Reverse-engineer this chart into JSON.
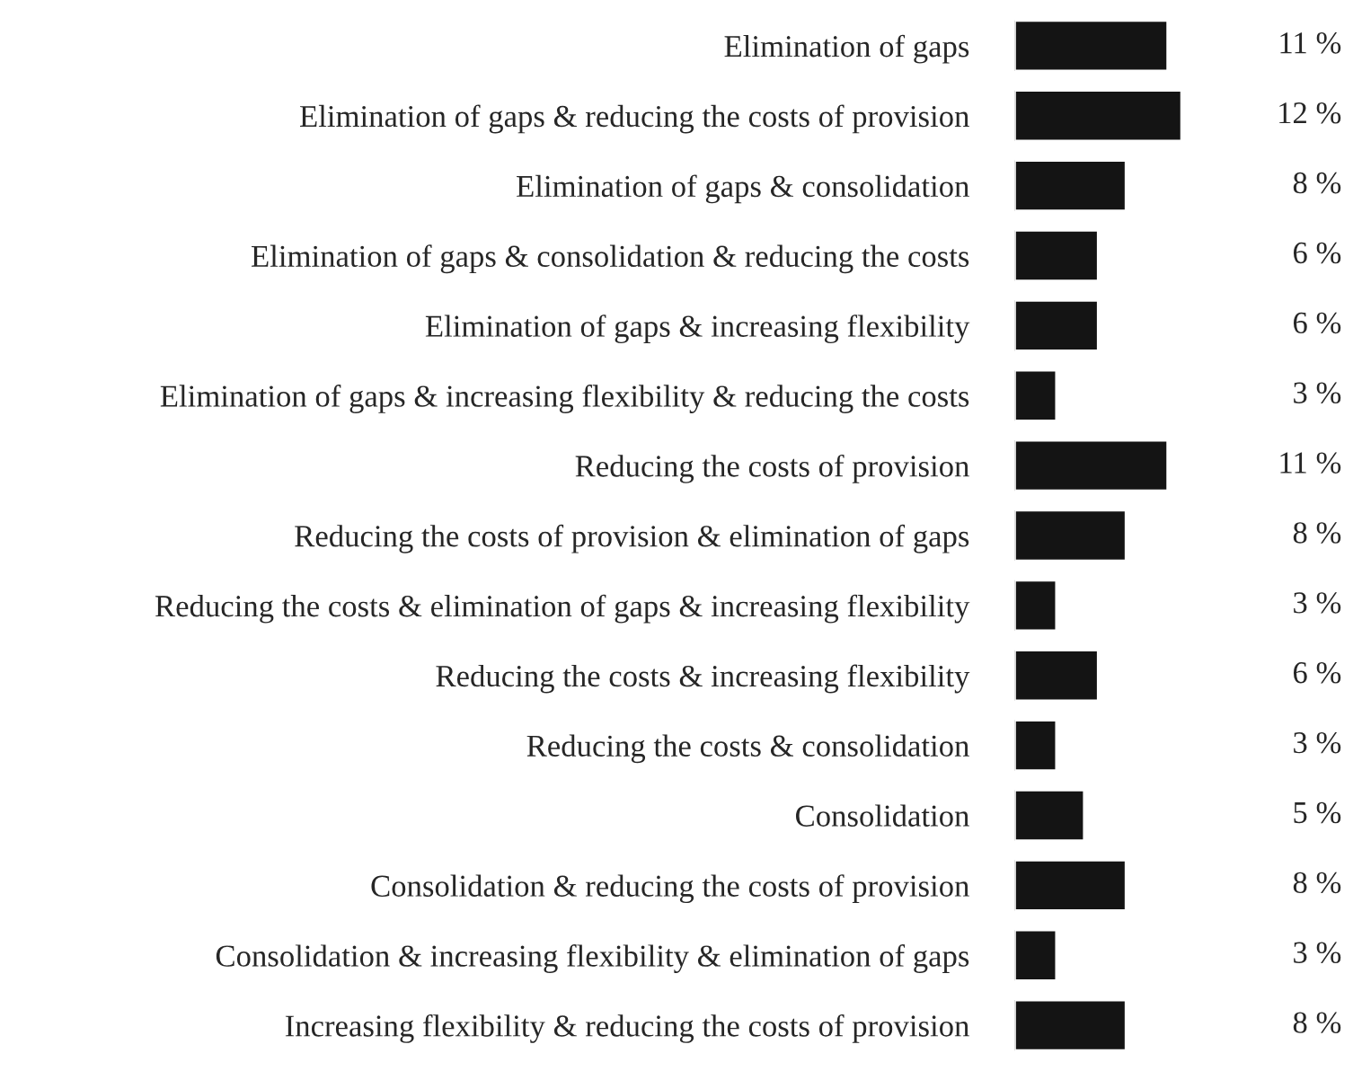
{
  "chart_data": {
    "type": "bar",
    "orientation": "horizontal",
    "categories": [
      "Elimination of gaps",
      "Elimination of gaps & reducing the costs of provision",
      "Elimination of gaps & consolidation",
      "Elimination of gaps & consolidation & reducing the costs",
      "Elimination of gaps & increasing flexibility",
      "Elimination of gaps & increasing flexibility & reducing the costs",
      "Reducing the costs of provision",
      "Reducing the costs of provision & elimination of gaps",
      "Reducing the costs & elimination of gaps & increasing flexibility",
      "Reducing the costs & increasing flexibility",
      "Reducing the costs & consolidation",
      "Consolidation",
      "Consolidation & reducing the costs of provision",
      "Consolidation & increasing flexibility & elimination of gaps",
      "Increasing flexibility & reducing the costs of provision"
    ],
    "values": [
      11,
      12,
      8,
      6,
      6,
      3,
      11,
      8,
      3,
      6,
      3,
      5,
      8,
      3,
      8
    ],
    "value_labels": [
      "11 %",
      "12 %",
      "8 %",
      "6 %",
      "6 %",
      "3 %",
      "11 %",
      "8 %",
      "3 %",
      "6 %",
      "3 %",
      "5 %",
      "8 %",
      "3 %",
      "8 %"
    ],
    "color": "#141414",
    "grid": false,
    "legend": false
  }
}
